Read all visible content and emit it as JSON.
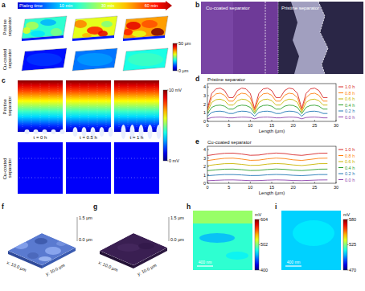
{
  "panels": {
    "a": {
      "panel_label": "a",
      "plating_time": "Plating time",
      "times": [
        "10 min",
        "30 min",
        "60 min"
      ],
      "rows": [
        "Pristine separator",
        "Cu-coated separator"
      ],
      "colorbar": {
        "range": [
          0,
          50
        ],
        "ticks": [
          {
            "value": 50,
            "label": "50 μm"
          },
          {
            "value": 0,
            "label": "0 μm"
          }
        ]
      }
    },
    "b": {
      "panel_label": "b",
      "labels": [
        "Cu-coated separator",
        "Pristine separator"
      ]
    },
    "c": {
      "panel_label": "c",
      "rows": [
        "Pristine separator",
        "Cu-coated separator"
      ],
      "times": [
        "t = 0 h",
        "t = 0.5 h",
        "t = 1 h"
      ],
      "colorbar": {
        "range": [
          0,
          10
        ],
        "ticks": [
          {
            "value": 10,
            "label": "10 mV"
          },
          {
            "value": 0,
            "label": "0 mV"
          }
        ]
      }
    },
    "f": {
      "panel_label": "f",
      "z_labels": [
        "1.5 μm",
        "0.0 μm"
      ],
      "x_label": "x: 10.0 μm",
      "y_label": "y: 10.0 μm"
    },
    "g": {
      "panel_label": "g",
      "z_labels": [
        "1.5 μm",
        "0.0 μm"
      ],
      "x_label": "x: 10.0 μm",
      "y_label": "y: 10.0 μm"
    },
    "h": {
      "panel_label": "h",
      "scale_bar": "400 nm",
      "colorbar": {
        "label": "mV",
        "range": [
          400,
          604
        ],
        "ticks": [
          604,
          502,
          400
        ]
      }
    },
    "i": {
      "panel_label": "i",
      "scale_bar": "400 nm",
      "colorbar": {
        "label": "mV",
        "range": [
          470,
          580
        ],
        "ticks": [
          580,
          525,
          470
        ]
      }
    }
  },
  "chart_data": [
    {
      "type": "line",
      "panel_label": "d",
      "title": "Pristine separator",
      "x_label": "Length (μm)",
      "x": [
        0,
        1,
        2,
        3,
        4,
        5,
        6,
        7,
        8,
        9,
        10,
        11,
        12,
        13,
        14,
        15,
        16,
        17,
        18,
        19,
        20,
        21,
        22,
        23,
        24,
        25,
        26,
        27,
        28
      ],
      "xlim": [
        0,
        30
      ],
      "xticks": [
        0,
        5,
        10,
        15,
        20,
        25,
        30
      ],
      "ylim": [
        0,
        4.4
      ],
      "yticks": [
        0,
        1,
        2,
        3,
        4
      ],
      "grid": false,
      "legend": "right",
      "series": [
        {
          "name": "0.0 h",
          "color": "#8e44ad",
          "values": [
            0.3,
            0.45,
            0.49,
            0.5,
            0.47,
            0.41,
            0.41,
            0.47,
            0.5,
            0.49,
            0.45,
            0.3,
            0.45,
            0.49,
            0.5,
            0.47,
            0.41,
            0.41,
            0.47,
            0.5,
            0.49,
            0.45,
            0.3,
            0.45,
            0.49,
            0.5,
            0.47,
            0.41,
            0.41
          ]
        },
        {
          "name": "0.2 h",
          "color": "#1f77b4",
          "values": [
            0.6,
            1.04,
            1.17,
            1.19,
            1.12,
            0.92,
            0.92,
            1.12,
            1.19,
            1.17,
            1.04,
            0.6,
            1.04,
            1.17,
            1.19,
            1.12,
            0.92,
            0.92,
            1.12,
            1.19,
            1.17,
            1.04,
            0.6,
            1.04,
            1.17,
            1.19,
            1.12,
            0.92,
            0.92
          ]
        },
        {
          "name": "0.4 h",
          "color": "#2ca02c",
          "values": [
            0.9,
            1.63,
            1.85,
            1.89,
            1.77,
            1.43,
            1.43,
            1.77,
            1.89,
            1.85,
            1.63,
            0.9,
            1.63,
            1.85,
            1.89,
            1.77,
            1.43,
            1.43,
            1.77,
            1.89,
            1.85,
            1.63,
            0.9,
            1.63,
            1.85,
            1.89,
            1.77,
            1.43,
            1.43
          ]
        },
        {
          "name": "0.6 h",
          "color": "#c9b400",
          "values": [
            1.1,
            2.2,
            2.53,
            2.59,
            2.41,
            1.9,
            1.9,
            2.41,
            2.59,
            2.53,
            2.2,
            1.1,
            2.2,
            2.53,
            2.59,
            2.41,
            1.9,
            1.9,
            2.41,
            2.59,
            2.53,
            2.2,
            1.1,
            2.2,
            2.53,
            2.59,
            2.41,
            1.9,
            1.9
          ]
        },
        {
          "name": "0.8 h",
          "color": "#ff7f0e",
          "values": [
            1.3,
            2.76,
            3.2,
            3.28,
            3.04,
            2.36,
            2.36,
            3.04,
            3.28,
            3.2,
            2.76,
            1.3,
            2.76,
            3.2,
            3.28,
            3.04,
            2.36,
            2.36,
            3.04,
            3.28,
            3.2,
            2.76,
            1.3,
            2.76,
            3.2,
            3.28,
            3.04,
            2.36,
            2.36
          ]
        },
        {
          "name": "1.0 h",
          "color": "#d62728",
          "values": [
            1.5,
            3.25,
            3.78,
            3.88,
            3.59,
            2.77,
            2.77,
            3.59,
            3.88,
            3.78,
            3.25,
            1.5,
            3.25,
            3.78,
            3.88,
            3.59,
            2.77,
            2.77,
            3.59,
            3.88,
            3.78,
            3.25,
            1.5,
            3.25,
            3.78,
            3.88,
            3.59,
            2.77,
            2.77
          ]
        }
      ]
    },
    {
      "type": "line",
      "panel_label": "e",
      "title": "Cu-coated separator",
      "x_label": "Length (μm)",
      "x": [
        0,
        2,
        4,
        6,
        8,
        10,
        12,
        14,
        16,
        18,
        20,
        22,
        24,
        26,
        28
      ],
      "xlim": [
        0,
        30
      ],
      "xticks": [
        0,
        5,
        10,
        15,
        20,
        25,
        30
      ],
      "ylim": [
        0,
        4.4
      ],
      "yticks": [
        0,
        1,
        2,
        3,
        4
      ],
      "grid": false,
      "legend": "right",
      "series": [
        {
          "name": "0.0 h",
          "color": "#8e44ad",
          "values": [
            0.3,
            0.35,
            0.39,
            0.4,
            0.36,
            0.31,
            0.32,
            0.37,
            0.4,
            0.38,
            0.33,
            0.31,
            0.35,
            0.39,
            0.4
          ]
        },
        {
          "name": "0.2 h",
          "color": "#1f77b4",
          "values": [
            0.9,
            0.98,
            1.04,
            1.04,
            0.99,
            0.92,
            0.93,
            1.01,
            1.05,
            1.02,
            0.95,
            0.91,
            0.97,
            1.04,
            1.04
          ]
        },
        {
          "name": "0.4 h",
          "color": "#2ca02c",
          "values": [
            1.5,
            1.6,
            1.68,
            1.69,
            1.62,
            1.52,
            1.54,
            1.64,
            1.7,
            1.66,
            1.56,
            1.51,
            1.59,
            1.68,
            1.69
          ]
        },
        {
          "name": "0.6 h",
          "color": "#c9b400",
          "values": [
            2.1,
            2.23,
            2.33,
            2.34,
            2.25,
            2.13,
            2.15,
            2.28,
            2.35,
            2.3,
            2.18,
            2.11,
            2.21,
            2.33,
            2.34
          ]
        },
        {
          "name": "0.8 h",
          "color": "#ff7f0e",
          "values": [
            2.7,
            2.85,
            2.97,
            2.99,
            2.88,
            2.73,
            2.76,
            2.91,
            3.0,
            2.94,
            2.79,
            2.72,
            2.84,
            2.97,
            2.99
          ]
        },
        {
          "name": "1.0 h",
          "color": "#d62728",
          "values": [
            3.3,
            3.45,
            3.57,
            3.59,
            3.48,
            3.33,
            3.36,
            3.51,
            3.6,
            3.54,
            3.39,
            3.32,
            3.44,
            3.57,
            3.59
          ]
        }
      ]
    }
  ]
}
